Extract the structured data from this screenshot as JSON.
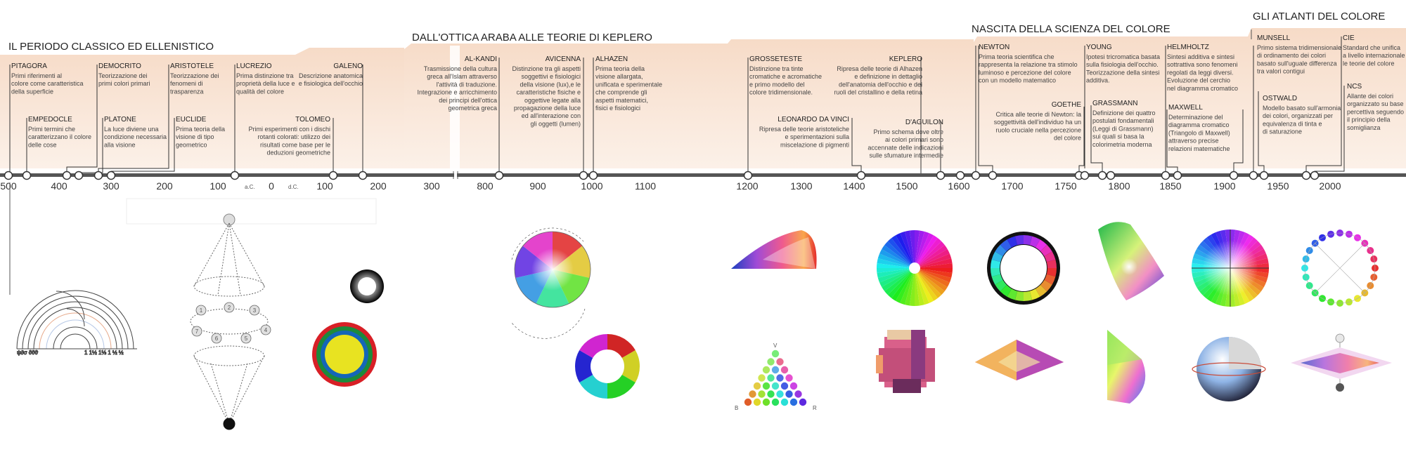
{
  "periods": [
    {
      "title": "IL PERIODO CLASSICO ED ELLENISTICO"
    },
    {
      "title": "DALL'OTTICA ARABA ALLE TEORIE DI KEPLERO"
    },
    {
      "title": "NASCITA DELLA SCIENZA DEL COLORE"
    },
    {
      "title": "GLI ATLANTI DEL COLORE"
    }
  ],
  "entries": [
    {
      "name": "PITAGORA",
      "desc": [
        "Primi riferimenti al",
        "colore come caratteristica",
        "della superficie"
      ]
    },
    {
      "name": "EMPEDOCLE",
      "desc": [
        "Primi termini che",
        "caratterizzano il colore",
        "delle cose"
      ]
    },
    {
      "name": "DEMOCRITO",
      "desc": [
        "Teorizzazione dei",
        "primi colori primari"
      ]
    },
    {
      "name": "PLATONE",
      "desc": [
        "La luce diviene una",
        "condizione necessaria",
        "alla visione"
      ]
    },
    {
      "name": "ARISTOTELE",
      "desc": [
        "Teorizzazione dei",
        "fenomeni di",
        "trasparenza"
      ]
    },
    {
      "name": "EUCLIDE",
      "desc": [
        "Prima teoria della",
        "visione di tipo",
        "geometrico"
      ]
    },
    {
      "name": "LUCREZIO",
      "desc": [
        "Prima distinzione tra",
        "proprietà della luce e",
        "qualità del colore"
      ]
    },
    {
      "name": "GALENO",
      "desc": [
        "Descrizione anatomica",
        "e fisiologica dell'occhio"
      ]
    },
    {
      "name": "TOLOMEO",
      "desc": [
        "Primi esperimenti con i dischi",
        "rotanti colorati: utilizzo dei",
        "risultati come base per le",
        "deduzioni geometriche"
      ]
    },
    {
      "name": "AL-KANDI",
      "desc": [
        "Trasmissione della cultura",
        "greca all'Islam attraverso",
        "l'attività di traduzione.",
        "Integrazione e arricchimento",
        "dei principi dell'ottica",
        "geometrica greca"
      ]
    },
    {
      "name": "AVICENNA",
      "desc": [
        "Distinzione tra gli aspetti",
        "soggettivi e fisiologici",
        "della visione (lux),e le",
        "caratteristiche fisiche e",
        "oggettive legate alla",
        "propagazione della luce",
        "ed all'interazione con",
        "gli oggetti (lumen)"
      ]
    },
    {
      "name": "ALHAZEN",
      "desc": [
        "Prima teoria della",
        "visione allargata,",
        "unificata e sperimentale",
        "che comprende gli",
        "aspetti matematici,",
        "fisici e fisiologici"
      ]
    },
    {
      "name": "GROSSETESTE",
      "desc": [
        "Distinzione tra tinte",
        "cromatiche e acromatiche",
        "e primo modello del",
        "colore tridimensionale."
      ]
    },
    {
      "name": "KEPLERO",
      "desc": [
        "Ripresa delle teorie di Alhazen",
        "e definizione in dettaglio",
        "dell'anatomia dell'occhio e dei",
        "ruoli del cristallino e della retina"
      ]
    },
    {
      "name": "LEONARDO DA VINCI",
      "desc": [
        "Ripresa delle teorie aristoteliche",
        "e sperimentazioni sulla",
        "miscelazione di pigmenti"
      ]
    },
    {
      "name": "D'AGUILON",
      "desc": [
        "Primo schema dove oltre",
        "ai colori primari sono",
        "accennate delle indicazioni",
        "sulle sfumature intermedie"
      ]
    },
    {
      "name": "NEWTON",
      "desc": [
        "Prima teoria scientifica  che",
        "rappresenta la relazione tra stimolo",
        "luminoso e percezione del colore",
        "con un modello matematico"
      ]
    },
    {
      "name": "GOETHE",
      "desc": [
        "Critica alle teorie di Newton: la",
        "soggettività dell'individuo ha un",
        "ruolo cruciale nella percezione",
        "del colore"
      ]
    },
    {
      "name": "YOUNG",
      "desc": [
        "Ipotesi tricromatica basata",
        "sulla fisiologia dell'occhio.",
        "Teorizzazione della sintesi",
        "additiva."
      ]
    },
    {
      "name": "GRASSMANN",
      "desc": [
        "Definizione dei quattro",
        "postulati fondamentali",
        "(Leggi di Grassmann)",
        "sui quali si basa la",
        "colorimetria moderna"
      ]
    },
    {
      "name": "HELMHOLTZ",
      "desc": [
        "Sintesi additiva e sintesi",
        "sottrattiva sono fenomeni",
        "regolati da leggi diversi.",
        "Evoluzione del cerchio",
        "nel diagramma cromatico"
      ]
    },
    {
      "name": "MAXWELL",
      "desc": [
        "Determinazione del",
        "diagramma cromatico",
        "(Triangolo di Maxwell)",
        "attraverso precise",
        "relazioni matematiche"
      ]
    },
    {
      "name": "MUNSELL",
      "desc": [
        "Primo sistema tridimensionale",
        "di ordinamento dei colori",
        "basato sull'uguale differenza",
        "tra valori contigui"
      ]
    },
    {
      "name": "OSTWALD",
      "desc": [
        "Modello basato sull'armonia",
        "dei colori, organizzati per",
        "equivalenza di tinta e",
        "di saturazione"
      ]
    },
    {
      "name": "CIE",
      "desc": [
        "Standard che unifica",
        "a livello internazionale",
        "le teorie del colore"
      ]
    },
    {
      "name": "NCS",
      "desc": [
        "Allante dei colori",
        "organizzato su base",
        "percettiva seguendo",
        "il principio della",
        "somiglianza"
      ]
    }
  ],
  "axis": {
    "ticks": [
      "500",
      "400",
      "300",
      "200",
      "100",
      "0",
      "100",
      "200",
      "300",
      "800",
      "900",
      "1000",
      "1100",
      "1200",
      "1300",
      "1400",
      "1500",
      "1600",
      "1700",
      "1750",
      "1800",
      "1850",
      "1900",
      "1950",
      "2000"
    ],
    "era_bc": "a.C.",
    "era_ad": "d.C."
  },
  "figures": {
    "ancient_letters": "ψ∂σ  ϑϑϑ",
    "ancient_numbers": "1  1½  1⅓  1 ½ ½",
    "sphere_numbers": [
      "1",
      "2",
      "3",
      "4",
      "5",
      "6",
      "7"
    ],
    "triangle_labels": [
      "V",
      "B",
      "R"
    ]
  }
}
